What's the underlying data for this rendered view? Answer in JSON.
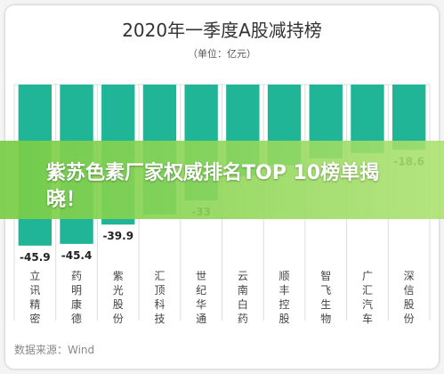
{
  "chart_data": {
    "type": "bar",
    "title": "2020年一季度A股减持榜",
    "subtitle": "（单位：亿元）",
    "categories": [
      "立讯精密",
      "药明康德",
      "紫光股份",
      "汇顶科技",
      "世纪华通",
      "云南白药",
      "顺丰控股",
      "智飞生物",
      "广汇汽车",
      "深信股份"
    ],
    "values": [
      -45.9,
      -45.4,
      -39.9,
      -37.0,
      -33.0,
      -26.0,
      -23.0,
      -21.0,
      -19.5,
      -18.6
    ],
    "value_labels": [
      "-45.9",
      "-45.4",
      "-39.9",
      "",
      "-33",
      "",
      "",
      "",
      "",
      "-18.6"
    ],
    "ylim": [
      -50,
      0
    ],
    "grid": true,
    "bar_color": "#1fb596"
  },
  "banner": {
    "text": "紫苏色素厂家权威排名TOP 10榜单揭晓！"
  },
  "source": "数据来源：Wind"
}
